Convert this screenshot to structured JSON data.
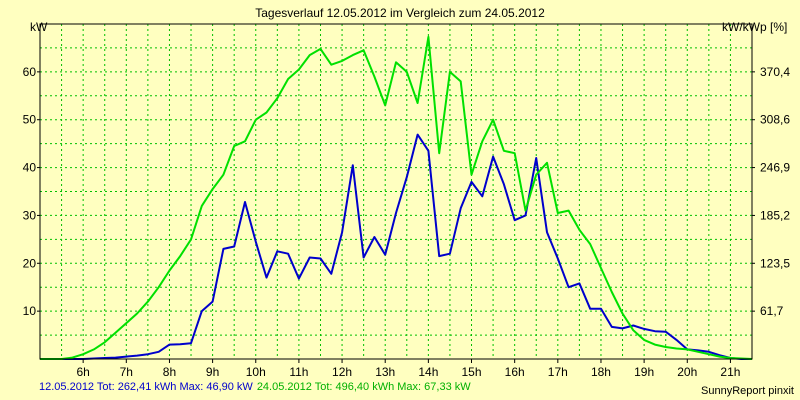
{
  "chart_data": {
    "type": "line",
    "title": "Tagesverlauf 12.05.2012 im Vergleich zum 24.05.2012",
    "ylabel_left": "kW",
    "ylabel_right": "kW/kWp [%]",
    "ylim": [
      0,
      70
    ],
    "yticks_left": [
      "10",
      "20",
      "30",
      "40",
      "50",
      "60"
    ],
    "yticks_right": [
      "61,7",
      "123,5",
      "185,2",
      "246,9",
      "308,6",
      "370,4"
    ],
    "xlim": [
      5,
      21.5
    ],
    "x_ticks": [
      "6h",
      "7h",
      "8h",
      "9h",
      "10h",
      "11h",
      "12h",
      "13h",
      "14h",
      "15h",
      "16h",
      "17h",
      "18h",
      "19h",
      "20h",
      "21h"
    ],
    "grid": true,
    "series": [
      {
        "name": "12.05.2012",
        "color": "#0000CC",
        "x": [
          5.0,
          5.25,
          5.5,
          5.75,
          6.0,
          6.25,
          6.5,
          6.75,
          7.0,
          7.25,
          7.5,
          7.75,
          8.0,
          8.25,
          8.5,
          8.75,
          9.0,
          9.25,
          9.5,
          9.75,
          10.0,
          10.25,
          10.5,
          10.75,
          11.0,
          11.25,
          11.5,
          11.75,
          12.0,
          12.25,
          12.5,
          12.75,
          13.0,
          13.25,
          13.5,
          13.75,
          14.0,
          14.25,
          14.5,
          14.75,
          15.0,
          15.25,
          15.5,
          15.75,
          16.0,
          16.25,
          16.5,
          16.75,
          17.0,
          17.25,
          17.5,
          17.75,
          18.0,
          18.25,
          18.5,
          18.75,
          19.0,
          19.25,
          19.5,
          19.75,
          20.0,
          20.25,
          20.5,
          20.75,
          21.0,
          21.25,
          21.5
        ],
        "values": [
          0,
          0,
          0,
          0,
          0,
          0.1,
          0.2,
          0.3,
          0.5,
          0.7,
          1.0,
          1.5,
          3.0,
          3.1,
          3.3,
          10.0,
          12.0,
          23.0,
          23.5,
          32.8,
          24.5,
          17.0,
          22.5,
          22.0,
          16.8,
          21.2,
          21.0,
          17.8,
          26.5,
          40.5,
          21.2,
          25.5,
          21.8,
          30.5,
          38.0,
          46.9,
          43.5,
          21.5,
          22.0,
          31.5,
          37.0,
          34.0,
          42.3,
          36.5,
          29.0,
          30.0,
          42.0,
          26.5,
          21.0,
          15.0,
          15.8,
          10.5,
          10.5,
          6.7,
          6.4,
          7.0,
          6.3,
          5.8,
          5.7,
          4.0,
          2.0,
          1.8,
          1.5,
          0.8,
          0.2,
          0,
          0
        ]
      },
      {
        "name": "24.05.2012",
        "color": "#00E000",
        "x": [
          5.0,
          5.25,
          5.5,
          5.75,
          6.0,
          6.25,
          6.5,
          6.75,
          7.0,
          7.25,
          7.5,
          7.75,
          8.0,
          8.25,
          8.5,
          8.75,
          9.0,
          9.25,
          9.5,
          9.75,
          10.0,
          10.25,
          10.5,
          10.75,
          11.0,
          11.25,
          11.5,
          11.75,
          12.0,
          12.25,
          12.5,
          12.75,
          13.0,
          13.25,
          13.5,
          13.75,
          14.0,
          14.25,
          14.5,
          14.75,
          15.0,
          15.25,
          15.5,
          15.75,
          16.0,
          16.25,
          16.5,
          16.75,
          17.0,
          17.25,
          17.5,
          17.75,
          18.0,
          18.25,
          18.5,
          18.75,
          19.0,
          19.25,
          19.5,
          19.75,
          20.0,
          20.25,
          20.5,
          20.75,
          21.0,
          21.25,
          21.5
        ],
        "values": [
          0,
          0,
          0,
          0.3,
          1.0,
          2.0,
          3.5,
          5.5,
          7.5,
          9.5,
          12.0,
          15.0,
          18.5,
          21.5,
          25.0,
          32.0,
          35.5,
          38.5,
          44.5,
          45.5,
          50.0,
          51.5,
          54.5,
          58.5,
          60.5,
          63.5,
          64.8,
          61.5,
          62.3,
          63.5,
          64.5,
          59.0,
          53.0,
          62.0,
          60.0,
          53.5,
          67.3,
          43.0,
          60.0,
          58.0,
          38.5,
          45.5,
          50.0,
          43.5,
          43.0,
          31.0,
          38.5,
          41.0,
          30.5,
          31.0,
          27.0,
          24.0,
          19.0,
          14.0,
          9.5,
          6.0,
          4.0,
          3.0,
          2.5,
          2.2,
          2.0,
          1.5,
          1.0,
          0.5,
          0.2,
          0.1,
          0
        ]
      }
    ]
  },
  "footer": {
    "series1_text": "12.05.2012 Tot: 262,41 kWh Max: 46,90 kW",
    "series2_text": "24.05.2012 Tot: 496,40 kWh Max: 67,33 kW",
    "series1_color": "#0000CC",
    "series2_color": "#00B000",
    "credit": "SunnyReport pinxit"
  }
}
